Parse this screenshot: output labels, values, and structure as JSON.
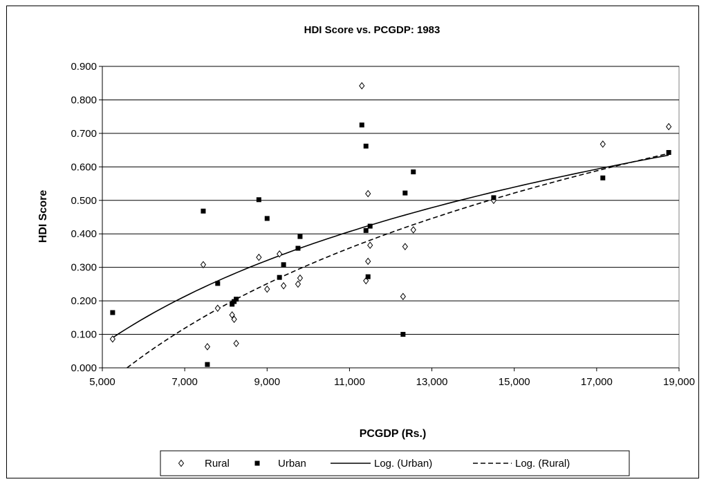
{
  "chart_data": {
    "type": "scatter",
    "title": "HDI Score vs. PCGDP: 1983",
    "xlabel": "PCGDP (Rs.)",
    "ylabel": "HDI Score",
    "xlim": [
      5000,
      19000
    ],
    "ylim": [
      0,
      0.9
    ],
    "x_ticks": [
      5000,
      7000,
      9000,
      11000,
      13000,
      15000,
      17000,
      19000
    ],
    "x_tick_labels": [
      "5,000",
      "7,000",
      "9,000",
      "11,000",
      "13,000",
      "15,000",
      "17,000",
      "19,000"
    ],
    "y_ticks": [
      0,
      0.1,
      0.2,
      0.3,
      0.4,
      0.5,
      0.6,
      0.7,
      0.8,
      0.9
    ],
    "y_tick_labels": [
      "0.000",
      "0.100",
      "0.200",
      "0.300",
      "0.400",
      "0.500",
      "0.600",
      "0.700",
      "0.800",
      "0.900"
    ],
    "grid": "horizontal",
    "legend_position": "bottom",
    "series": [
      {
        "name": "Rural",
        "marker": "diamond-open",
        "color": "#000000",
        "points": [
          [
            5250,
            0.086
          ],
          [
            7450,
            0.308
          ],
          [
            7550,
            0.063
          ],
          [
            7800,
            0.178
          ],
          [
            8150,
            0.158
          ],
          [
            8200,
            0.145
          ],
          [
            8250,
            0.073
          ],
          [
            8800,
            0.33
          ],
          [
            9000,
            0.235
          ],
          [
            9300,
            0.34
          ],
          [
            9400,
            0.245
          ],
          [
            9750,
            0.25
          ],
          [
            9800,
            0.268
          ],
          [
            11300,
            0.842
          ],
          [
            11400,
            0.26
          ],
          [
            11450,
            0.318
          ],
          [
            11450,
            0.52
          ],
          [
            11500,
            0.366
          ],
          [
            12300,
            0.213
          ],
          [
            12350,
            0.362
          ],
          [
            12550,
            0.412
          ],
          [
            14500,
            0.5
          ],
          [
            17150,
            0.668
          ],
          [
            18750,
            0.72
          ]
        ]
      },
      {
        "name": "Urban",
        "marker": "square-filled",
        "color": "#000000",
        "points": [
          [
            5250,
            0.165
          ],
          [
            7450,
            0.468
          ],
          [
            7550,
            0.01
          ],
          [
            7800,
            0.252
          ],
          [
            8150,
            0.19
          ],
          [
            8200,
            0.198
          ],
          [
            8250,
            0.205
          ],
          [
            8800,
            0.502
          ],
          [
            9000,
            0.446
          ],
          [
            9300,
            0.27
          ],
          [
            9400,
            0.308
          ],
          [
            9750,
            0.357
          ],
          [
            9800,
            0.392
          ],
          [
            11300,
            0.725
          ],
          [
            11400,
            0.662
          ],
          [
            11400,
            0.41
          ],
          [
            11450,
            0.272
          ],
          [
            11500,
            0.423
          ],
          [
            12300,
            0.1
          ],
          [
            12350,
            0.522
          ],
          [
            12550,
            0.585
          ],
          [
            14500,
            0.508
          ],
          [
            17150,
            0.567
          ],
          [
            18750,
            0.643
          ]
        ]
      }
    ],
    "trendlines": [
      {
        "name": "Log. (Urban)",
        "type": "logarithmic",
        "style": "solid",
        "x_range": [
          5250,
          18750
        ],
        "endpoints": [
          [
            5250,
            0.09
          ],
          [
            18750,
            0.635
          ]
        ]
      },
      {
        "name": "Log. (Rural)",
        "type": "logarithmic",
        "style": "dashed",
        "x_range": [
          5600,
          18750
        ],
        "endpoints": [
          [
            5600,
            0.0
          ],
          [
            18750,
            0.64
          ]
        ]
      }
    ],
    "legend": [
      "Rural",
      "Urban",
      "Log. (Urban)",
      "Log. (Rural)"
    ]
  }
}
